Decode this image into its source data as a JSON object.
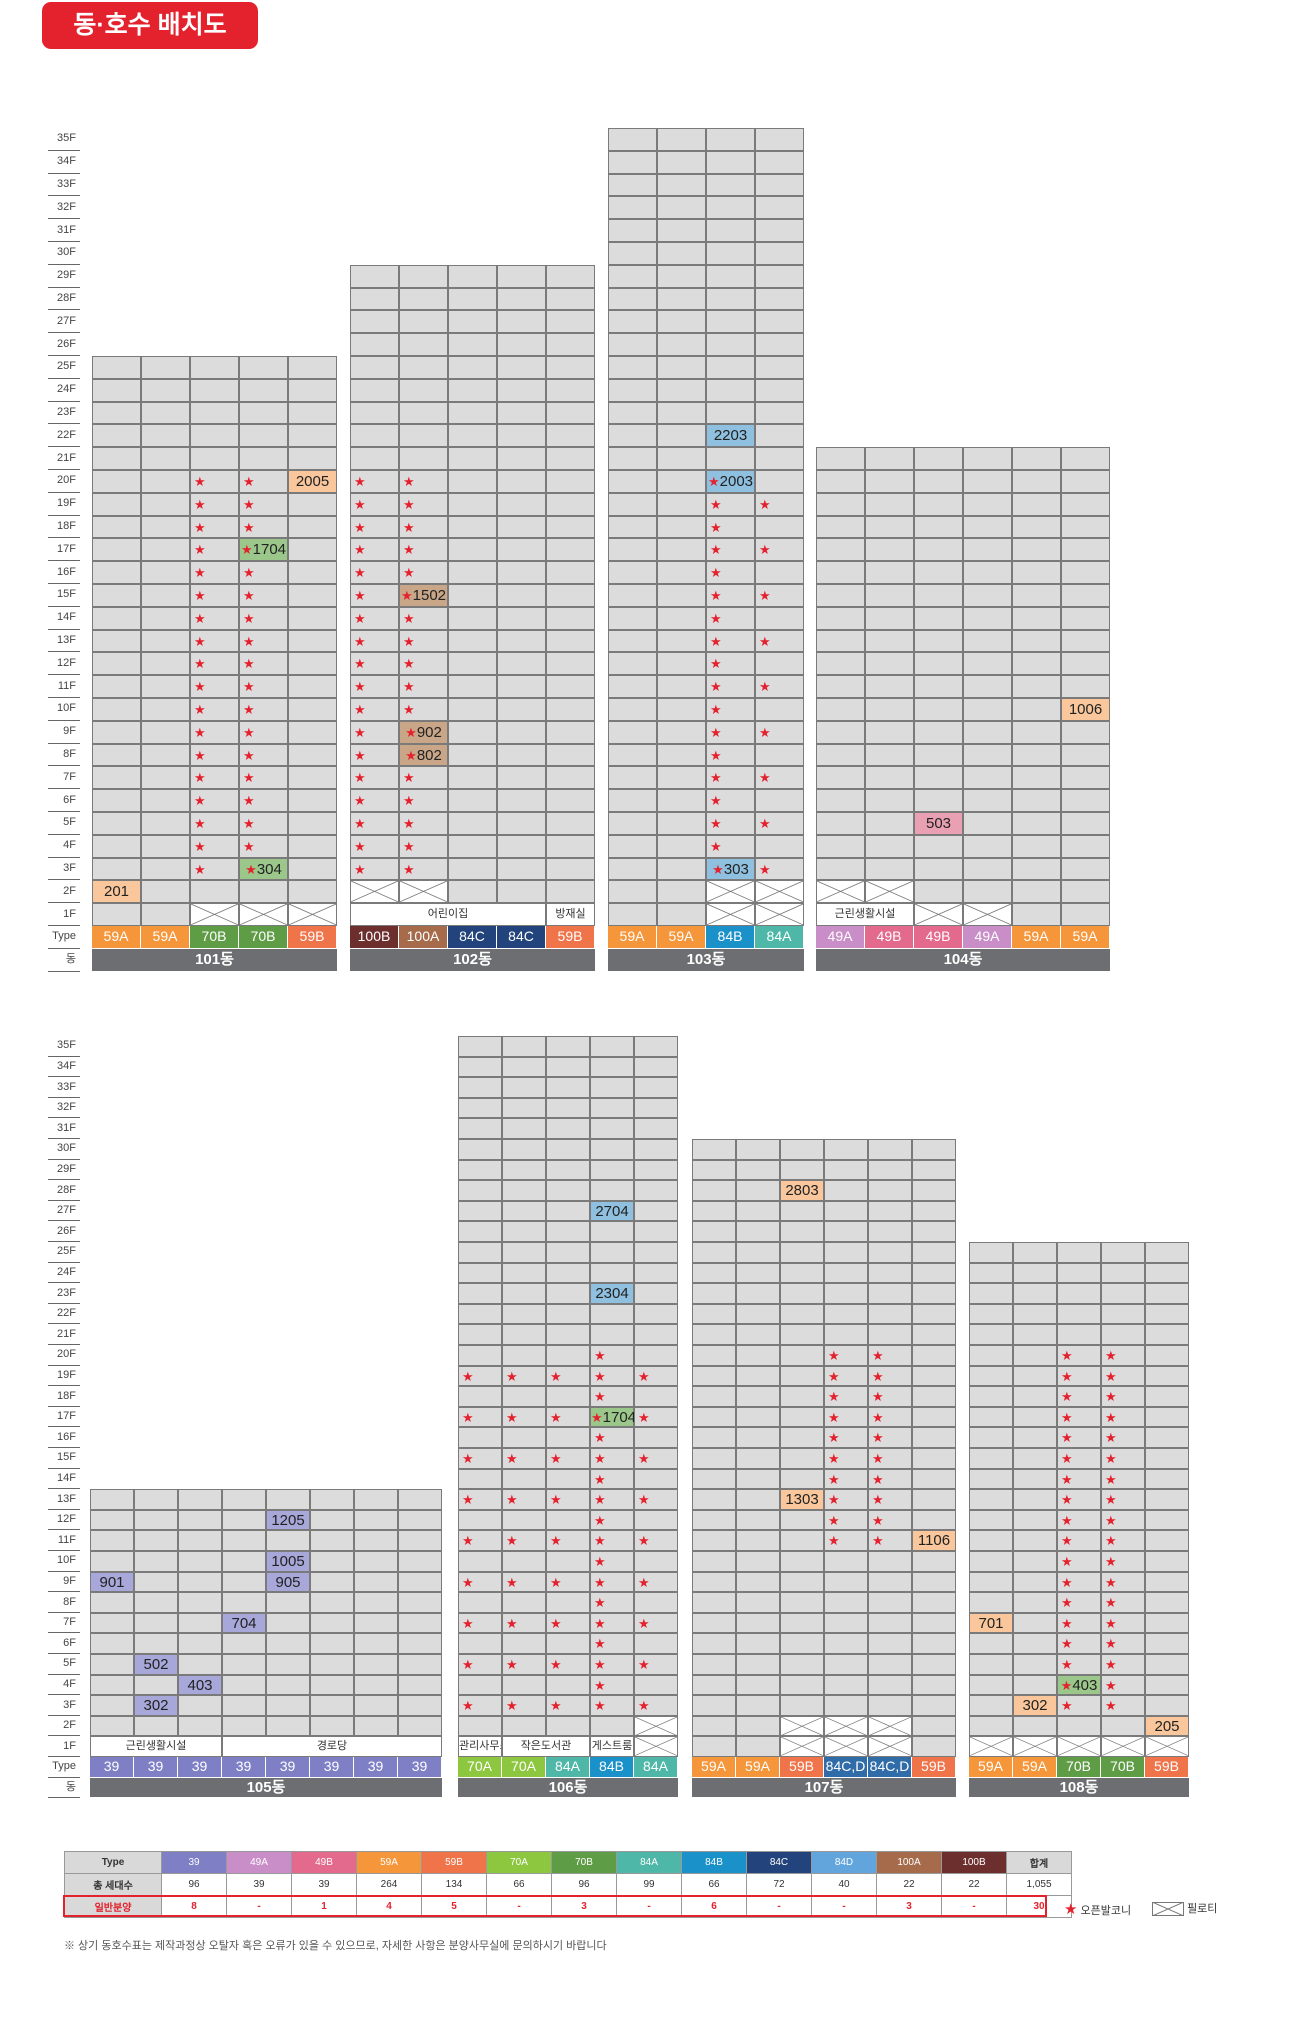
{
  "title": "동·호수 배치도",
  "floor_labels_top": [
    "35F",
    "34F",
    "33F",
    "32F",
    "31F",
    "30F",
    "29F",
    "28F",
    "27F",
    "26F",
    "25F",
    "24F",
    "23F",
    "22F",
    "21F",
    "20F",
    "19F",
    "18F",
    "17F",
    "16F",
    "15F",
    "14F",
    "13F",
    "12F",
    "11F",
    "10F",
    "9F",
    "8F",
    "7F",
    "6F",
    "5F",
    "4F",
    "3F",
    "2F",
    "1F",
    "Type",
    "동"
  ],
  "floor_labels_bottom": [
    "35F",
    "34F",
    "33F",
    "32F",
    "31F",
    "30F",
    "29F",
    "28F",
    "27F",
    "26F",
    "25F",
    "24F",
    "23F",
    "22F",
    "21F",
    "20F",
    "19F",
    "18F",
    "17F",
    "16F",
    "15F",
    "14F",
    "13F",
    "12F",
    "11F",
    "10F",
    "9F",
    "8F",
    "7F",
    "6F",
    "5F",
    "4F",
    "3F",
    "2F",
    "1F",
    "Type",
    "동"
  ],
  "colors": {
    "39": "#7f7fc6",
    "49A": "#c98ec8",
    "49B": "#e3698d",
    "59A": "#f6963a",
    "59B": "#f0744a",
    "70A": "#8dc63f",
    "70B": "#5e9c46",
    "84A": "#4eb7a7",
    "84B": "#1a91c9",
    "84C": "#22437c",
    "84C,D": "#2f6ca8",
    "84D": "#62a5dc",
    "100A": "#a56b4b",
    "100B": "#6d2e2e",
    "hl_orange": "#f9c79b",
    "hl_green": "#9bc88a",
    "hl_brown": "#c9a687",
    "hl_blue": "#8fc0df",
    "hl_pink": "#eaa0b3",
    "hl_purple": "#a7a7d9",
    "star": "#e3222e"
  },
  "buildings": [
    {
      "dong": "101동",
      "top": 25,
      "lines": [
        "59A",
        "59A",
        "70B",
        "70B",
        "59B"
      ],
      "units": {
        "2-1": "201",
        "20-5": "2005",
        "17-4": "1704",
        "3-4": "304"
      },
      "stars_rows": [
        3,
        20
      ],
      "stars_cols": [
        3,
        4
      ],
      "facilities": [
        {
          "col": 1,
          "span": 1,
          "kind": "pilotis-empty"
        }
      ],
      "pilotis_cols": [
        3,
        4,
        5
      ]
    },
    {
      "dong": "102동",
      "top": 29,
      "lines": [
        "100B",
        "100A",
        "84C",
        "84C",
        "59B"
      ],
      "units": {
        "15-2": "1502",
        "9-2": "902",
        "8-2": "802"
      },
      "stars_rows": [
        3,
        20
      ],
      "stars_cols": [
        1,
        2
      ],
      "facilities": [
        {
          "text": "어린이집",
          "col": 1,
          "span": 4
        },
        {
          "text": "방재실",
          "col": 5,
          "span": 1
        }
      ],
      "pilotis2_cols": [
        1,
        2
      ]
    },
    {
      "dong": "103동",
      "top": 35,
      "lines": [
        "59A",
        "59A",
        "84B",
        "84A"
      ],
      "units": {
        "22-3": "2203",
        "20-3": "2003",
        "3-3": "303"
      },
      "stars": [],
      "pilotis_cols": [
        3,
        4
      ]
    },
    {
      "dong": "104동",
      "top": 21,
      "lines": [
        "49A",
        "49B",
        "49B",
        "49A",
        "59A",
        "59A"
      ],
      "units": {
        "10-6": "1006",
        "5-3": "503"
      },
      "facilities": [
        {
          "text": "근린생활시설",
          "col": 1,
          "span": 2
        }
      ]
    },
    {
      "dong": "105동",
      "top": 13,
      "lines": [
        "39",
        "39",
        "39",
        "39",
        "39",
        "39",
        "39",
        "39"
      ],
      "units": {
        "12-5": "1205",
        "10-5": "1005",
        "9-5": "905",
        "9-1": "901",
        "7-4": "704",
        "5-2": "502",
        "4-3": "403",
        "3-2": "302"
      },
      "facilities": [
        {
          "text": "근린생활시설",
          "col": 1,
          "span": 3
        },
        {
          "text": "경로당",
          "col": 4,
          "span": 5
        }
      ]
    },
    {
      "dong": "106동",
      "top": 35,
      "lines": [
        "70A",
        "70A",
        "84A",
        "84B",
        "84A"
      ],
      "units": {
        "27-4": "2704",
        "23-4": "2304",
        "17-4": "1704"
      },
      "facilities": [
        {
          "text": "관리사무소",
          "col": 1,
          "span": 1
        },
        {
          "text": "작은도서관",
          "col": 2,
          "span": 2
        },
        {
          "text": "게스트룸",
          "col": 4,
          "span": 1
        }
      ]
    },
    {
      "dong": "107동",
      "top": 30,
      "lines": [
        "59A",
        "59A",
        "59B",
        "84C,D",
        "84C,D",
        "59B"
      ],
      "units": {
        "28-3": "2803",
        "13-3": "1303",
        "11-6": "1106"
      }
    },
    {
      "dong": "108동",
      "top": 25,
      "lines": [
        "59A",
        "59A",
        "70B",
        "70B",
        "59B"
      ],
      "units": {
        "7-1": "701",
        "4-3": "403",
        "3-2": "302",
        "2-5": "205"
      }
    }
  ],
  "legend_table": {
    "header": [
      "Type",
      "39",
      "49A",
      "49B",
      "59A",
      "59B",
      "70A",
      "70B",
      "84A",
      "84B",
      "84C",
      "84D",
      "100A",
      "100B",
      "합계"
    ],
    "total": [
      "총 세대수",
      "96",
      "39",
      "39",
      "264",
      "134",
      "66",
      "96",
      "99",
      "66",
      "72",
      "40",
      "22",
      "22",
      "1,055"
    ],
    "sale": [
      "일반분양",
      "8",
      "-",
      "1",
      "4",
      "5",
      "-",
      "3",
      "-",
      "6",
      "-",
      "-",
      "3",
      "-",
      "30"
    ]
  },
  "legend_star_label": "오픈발코니",
  "legend_pilotis_label": "필로티",
  "note": "※ 상기 동호수표는 제작과정상 오탈자 혹은 오류가 있을 수 있으므로, 자세한 사항은 분양사무실에 문의하시기 바랍니다"
}
